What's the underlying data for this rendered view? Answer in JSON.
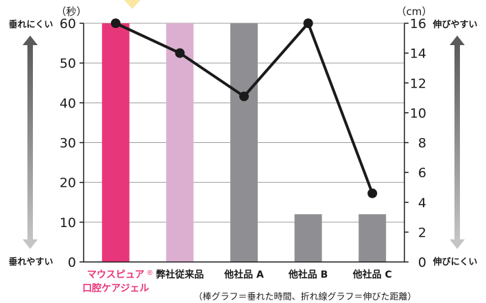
{
  "chart_data": {
    "type": "bar",
    "categories": [
      {
        "line1": "マウスピュア",
        "mark": "®",
        "line2": "口腔ケアジェル"
      },
      {
        "line1": "弊社従来品",
        "mark": "",
        "line2": ""
      },
      {
        "line1": "他社品 A",
        "mark": "",
        "line2": ""
      },
      {
        "line1": "他社品 B",
        "mark": "",
        "line2": ""
      },
      {
        "line1": "他社品 C",
        "mark": "",
        "line2": ""
      }
    ],
    "series": [
      {
        "type": "bar",
        "axis": "left",
        "values": [
          60,
          60,
          60,
          12,
          12
        ],
        "colors": [
          "#e8367a",
          "#dcafd0",
          "#8f8f93",
          "#8f8f93",
          "#8f8f93"
        ]
      },
      {
        "type": "line",
        "axis": "right",
        "values": [
          16,
          14,
          11.1,
          16,
          4.6
        ],
        "color": "#1a1a1a"
      }
    ],
    "left_axis": {
      "unit": "（秒）",
      "ylim": [
        0,
        60
      ],
      "ticks": [
        0,
        10,
        20,
        30,
        40,
        50,
        60
      ],
      "top_label": "垂れにくい",
      "bottom_label": "垂れやすい"
    },
    "right_axis": {
      "unit": "（cm）",
      "ylim": [
        0,
        16
      ],
      "ticks": [
        0,
        2,
        4,
        6,
        8,
        10,
        12,
        14,
        16
      ],
      "top_label": "伸びやすい",
      "bottom_label": "伸びにくい"
    },
    "note": "（棒グラフ＝垂れた時間、折れ線グラフ＝伸びた距離）",
    "grid": true,
    "highlight_color": "#e8367a"
  }
}
